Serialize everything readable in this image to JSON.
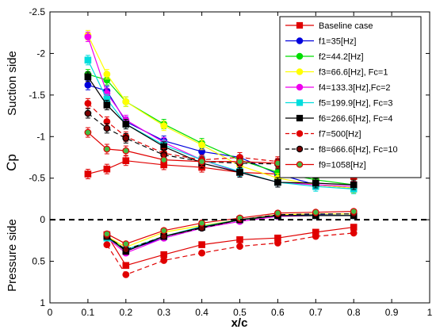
{
  "chart_data": {
    "type": "line",
    "xlabel": "x/c",
    "ylabel": "Cp",
    "side_labels": {
      "suction": "Suction side",
      "pressure": "Pressure side"
    },
    "xlim": [
      0,
      1
    ],
    "ylim": [
      1,
      -2.5
    ],
    "y_inverted": true,
    "x_ticks": [
      0,
      0.1,
      0.2,
      0.3,
      0.4,
      0.5,
      0.6,
      0.7,
      0.8,
      0.9,
      1
    ],
    "x_tick_labels": [
      "0",
      "0.1",
      "0.2",
      "0.3",
      "0.4",
      "0.5",
      "0.6",
      "0.7",
      "0.8",
      "0.9",
      "1"
    ],
    "y_ticks": [
      -2.5,
      -2,
      -1.5,
      -1,
      -0.5,
      0,
      0.5,
      1
    ],
    "y_tick_labels": [
      "-2.5",
      "-2",
      "-1.5",
      "-1",
      "-0.5",
      "0",
      "0.5",
      "1"
    ],
    "zero_line": "dashed",
    "grid": false,
    "legend_position": "top-right",
    "series": [
      {
        "name": "Baseline case",
        "color": "#e00000",
        "fill": "#e00000",
        "line": "solid",
        "marker": "square",
        "upper": {
          "x": [
            0.1,
            0.15,
            0.2,
            0.3,
            0.4,
            0.5,
            0.6,
            0.7,
            0.8
          ],
          "y": [
            -0.55,
            -0.61,
            -0.71,
            -0.66,
            -0.63,
            -0.57,
            -0.55,
            -0.53,
            -0.52
          ]
        },
        "lower": {
          "x": [
            0.15,
            0.2,
            0.3,
            0.4,
            0.5,
            0.6,
            0.7,
            0.8
          ],
          "y": [
            0.18,
            0.55,
            0.42,
            0.3,
            0.24,
            0.22,
            0.15,
            0.09
          ]
        }
      },
      {
        "name": "f1=35[Hz]",
        "color": "#0000dd",
        "fill": "#0000dd",
        "line": "solid",
        "marker": "circle",
        "upper": {
          "x": [
            0.1,
            0.15,
            0.2,
            0.3,
            0.4,
            0.5,
            0.6,
            0.7,
            0.8
          ],
          "y": [
            -1.62,
            -1.55,
            -1.18,
            -0.95,
            -0.82,
            -0.75,
            -0.55,
            -0.42,
            -0.38
          ]
        },
        "lower": {
          "x": [
            0.15,
            0.2,
            0.3,
            0.4,
            0.5,
            0.6,
            0.7,
            0.8
          ],
          "y": [
            0.2,
            0.37,
            0.22,
            0.1,
            0.0,
            -0.06,
            -0.06,
            -0.05
          ]
        }
      },
      {
        "name": "f2=44.2[Hz]",
        "color": "#00dd00",
        "fill": "#00dd00",
        "line": "solid",
        "marker": "circle",
        "upper": {
          "x": [
            0.1,
            0.15,
            0.2,
            0.3,
            0.4,
            0.5,
            0.6,
            0.7,
            0.8
          ],
          "y": [
            -1.75,
            -1.68,
            -1.42,
            -1.15,
            -0.92,
            -0.72,
            -0.57,
            -0.48,
            -0.42
          ]
        },
        "lower": {
          "x": [
            0.15,
            0.2,
            0.3,
            0.4,
            0.5,
            0.6,
            0.7,
            0.8
          ],
          "y": [
            0.2,
            0.36,
            0.2,
            0.1,
            0.0,
            -0.04,
            -0.05,
            -0.05
          ]
        }
      },
      {
        "name": "f3=66.6[Hz], Fc=1",
        "color": "#ffff00",
        "fill": "#ffff00",
        "line": "solid",
        "marker": "circle",
        "upper": {
          "x": [
            0.1,
            0.15,
            0.2,
            0.3,
            0.4,
            0.5,
            0.6,
            0.7,
            0.8
          ],
          "y": [
            -2.22,
            -1.75,
            -1.42,
            -1.13,
            -0.9,
            -0.65,
            -0.5,
            -0.42,
            -0.38
          ]
        },
        "lower": {
          "x": [
            0.15,
            0.2,
            0.3,
            0.4,
            0.5,
            0.6,
            0.7,
            0.8
          ],
          "y": [
            0.2,
            0.33,
            0.15,
            0.07,
            0.0,
            -0.06,
            -0.07,
            -0.07
          ]
        }
      },
      {
        "name": "f4=133.3[Hz],Fc=2",
        "color": "#ee00ee",
        "fill": "#ee00ee",
        "line": "solid",
        "marker": "circle",
        "upper": {
          "x": [
            0.1,
            0.15,
            0.2,
            0.3,
            0.4,
            0.5,
            0.6,
            0.7,
            0.8
          ],
          "y": [
            -2.2,
            -1.52,
            -1.2,
            -0.93,
            -0.72,
            -0.57,
            -0.45,
            -0.42,
            -0.4
          ]
        },
        "lower": {
          "x": [
            0.15,
            0.2,
            0.3,
            0.4,
            0.5,
            0.6,
            0.7,
            0.8
          ],
          "y": [
            0.22,
            0.4,
            0.22,
            0.1,
            0.02,
            -0.04,
            -0.05,
            -0.05
          ]
        }
      },
      {
        "name": "f5=199.9[Hz], Fc=3",
        "color": "#00dddd",
        "fill": "#00dddd",
        "line": "solid",
        "marker": "square",
        "upper": {
          "x": [
            0.1,
            0.15,
            0.2,
            0.3,
            0.4,
            0.5,
            0.6,
            0.7,
            0.8
          ],
          "y": [
            -1.92,
            -1.45,
            -1.15,
            -0.9,
            -0.72,
            -0.58,
            -0.45,
            -0.4,
            -0.37
          ]
        },
        "lower": {
          "x": [
            0.15,
            0.2,
            0.3,
            0.4,
            0.5,
            0.6,
            0.7,
            0.8
          ],
          "y": [
            0.22,
            0.36,
            0.2,
            0.08,
            0.0,
            -0.05,
            -0.05,
            -0.05
          ]
        }
      },
      {
        "name": "f6=266.6[Hz], Fc=4",
        "color": "#000000",
        "fill": "#000000",
        "line": "solid",
        "marker": "square",
        "upper": {
          "x": [
            0.1,
            0.15,
            0.2,
            0.3,
            0.4,
            0.5,
            0.6,
            0.7,
            0.8
          ],
          "y": [
            -1.72,
            -1.38,
            -1.15,
            -0.88,
            -0.68,
            -0.57,
            -0.45,
            -0.44,
            -0.42
          ]
        },
        "lower": {
          "x": [
            0.15,
            0.2,
            0.3,
            0.4,
            0.5,
            0.6,
            0.7,
            0.8
          ],
          "y": [
            0.2,
            0.38,
            0.2,
            0.09,
            0.0,
            -0.05,
            -0.05,
            -0.05
          ]
        }
      },
      {
        "name": "f7=500[Hz]",
        "color": "#e00000",
        "fill": "#e00000",
        "line": "dashed",
        "marker": "circle-dark",
        "upper": {
          "x": [
            0.1,
            0.15,
            0.2,
            0.3,
            0.4,
            0.5,
            0.6,
            0.7,
            0.8
          ],
          "y": [
            -1.4,
            -1.18,
            -1.0,
            -0.8,
            -0.72,
            -0.75,
            -0.7,
            -0.72,
            -0.7
          ]
        },
        "lower": {
          "x": [
            0.15,
            0.2,
            0.3,
            0.4,
            0.5,
            0.6,
            0.7,
            0.8
          ],
          "y": [
            0.3,
            0.66,
            0.49,
            0.4,
            0.32,
            0.28,
            0.2,
            0.16
          ]
        }
      },
      {
        "name": "f8=666.6[Hz], Fc=10",
        "color": "#000000",
        "fill": "#7a0000",
        "line": "dashed",
        "marker": "circle-dark",
        "upper": {
          "x": [
            0.1,
            0.15,
            0.2,
            0.3,
            0.4,
            0.5,
            0.6,
            0.7,
            0.8
          ],
          "y": [
            -1.28,
            -1.1,
            -0.98,
            -0.78,
            -0.7,
            -0.68,
            -0.67,
            -0.68,
            -0.6
          ]
        },
        "lower": {
          "x": [
            0.15,
            0.2,
            0.3,
            0.4,
            0.5,
            0.6,
            0.7,
            0.8
          ],
          "y": [
            0.2,
            0.36,
            0.2,
            0.1,
            0.0,
            -0.06,
            -0.07,
            -0.07
          ]
        }
      },
      {
        "name": "f9=1058[Hz]",
        "color": "#e00000",
        "fill": "#44bb44",
        "line": "solid",
        "marker": "circle",
        "upper": {
          "x": [
            0.1,
            0.15,
            0.2,
            0.3,
            0.4,
            0.5,
            0.6,
            0.7,
            0.8
          ],
          "y": [
            -1.05,
            -0.85,
            -0.83,
            -0.72,
            -0.7,
            -0.7,
            -0.68,
            -0.65,
            -0.64
          ]
        },
        "lower": {
          "x": [
            0.15,
            0.2,
            0.3,
            0.4,
            0.5,
            0.6,
            0.7,
            0.8
          ],
          "y": [
            0.17,
            0.29,
            0.13,
            0.04,
            -0.02,
            -0.08,
            -0.09,
            -0.1
          ]
        }
      }
    ]
  }
}
